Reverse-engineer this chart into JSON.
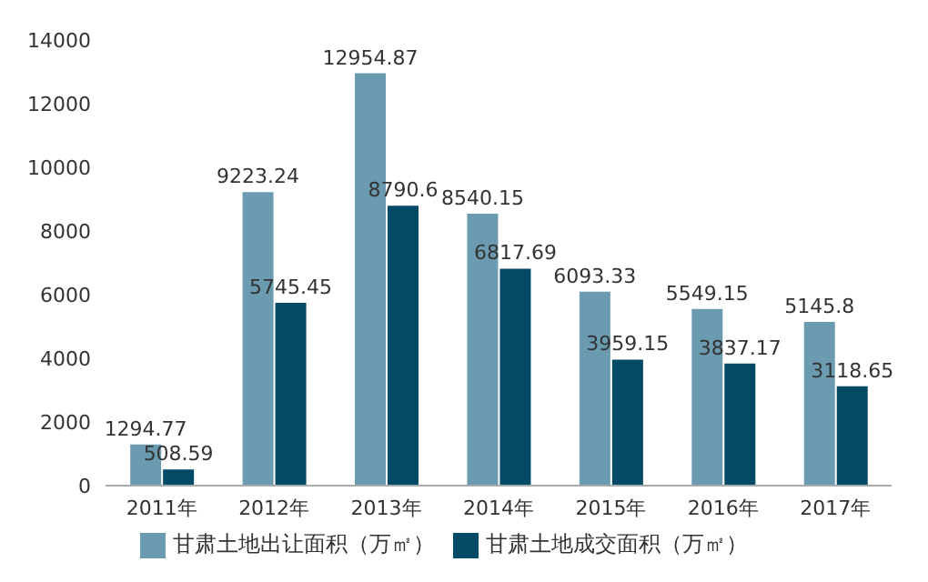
{
  "chart_data": {
    "type": "bar",
    "categories": [
      "2011年",
      "2012年",
      "2013年",
      "2014年",
      "2015年",
      "2016年",
      "2017年"
    ],
    "series": [
      {
        "name": "甘肃土地出让面积（万㎡）",
        "color": "#6b9bb1",
        "values": [
          1294.77,
          9223.24,
          12954.87,
          8540.15,
          6093.33,
          5549.15,
          5145.8
        ]
      },
      {
        "name": "甘肃土地成交面积（万㎡）",
        "color": "#024a66",
        "values": [
          508.59,
          5745.45,
          8790.6,
          6817.69,
          3959.15,
          3837.17,
          3118.65
        ]
      }
    ],
    "ylim": [
      0,
      14000
    ],
    "yticks": [
      0,
      2000,
      4000,
      6000,
      8000,
      10000,
      12000,
      14000
    ],
    "grid": false,
    "legend": "bottom",
    "data_labels": true
  }
}
